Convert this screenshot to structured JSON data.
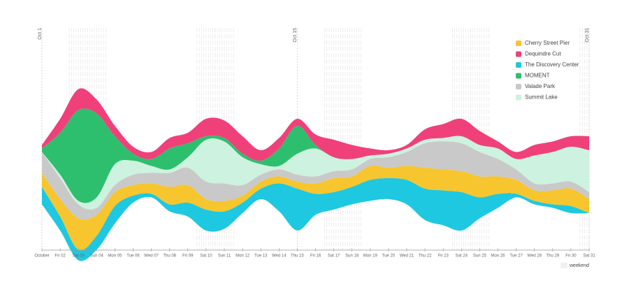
{
  "chart_data": {
    "type": "streamgraph",
    "categories": [
      "October",
      "Fri 02",
      "Sat 03",
      "Sun 04",
      "Mon 05",
      "Tue 06",
      "Wed 07",
      "Thu 08",
      "Fri 09",
      "Sat 10",
      "Sun 11",
      "Mon 12",
      "Tue 13",
      "Wed 14",
      "Thu 15",
      "Fri 16",
      "Sat 17",
      "Sun 18",
      "Mon 19",
      "Tue 20",
      "Wed 21",
      "Thu 22",
      "Fri 23",
      "Sat 24",
      "Sun 25",
      "Mon 26",
      "Tue 27",
      "Wed 28",
      "Thu 29",
      "Fri 30",
      "Sat 31"
    ],
    "series": [
      {
        "name": "Cherry Street Pier",
        "color": "#f7c52d",
        "values": [
          20,
          25,
          45,
          30,
          20,
          15,
          15,
          25,
          25,
          15,
          15,
          10,
          10,
          10,
          10,
          15,
          20,
          15,
          20,
          15,
          20,
          30,
          30,
          30,
          30,
          25,
          20,
          15,
          20,
          25,
          20
        ]
      },
      {
        "name": "Dequindre Cut",
        "color": "#f0407a",
        "values": [
          5,
          20,
          30,
          20,
          15,
          10,
          10,
          15,
          15,
          25,
          25,
          25,
          15,
          15,
          10,
          15,
          25,
          20,
          10,
          5,
          5,
          15,
          20,
          25,
          20,
          10,
          10,
          15,
          15,
          15,
          20
        ]
      },
      {
        "name": "The Discovery Center",
        "color": "#1ec8e0",
        "values": [
          25,
          20,
          15,
          20,
          25,
          10,
          5,
          10,
          20,
          30,
          25,
          15,
          15,
          40,
          60,
          30,
          25,
          25,
          30,
          30,
          35,
          45,
          50,
          55,
          30,
          20,
          5,
          5,
          5,
          10,
          0
        ]
      },
      {
        "name": "MOMENT",
        "color": "#2dbf6e",
        "values": [
          5,
          60,
          130,
          120,
          40,
          10,
          10,
          30,
          20,
          5,
          5,
          5,
          5,
          25,
          40,
          5,
          0,
          0,
          0,
          0,
          0,
          0,
          0,
          0,
          0,
          0,
          0,
          0,
          0,
          0,
          0
        ]
      },
      {
        "name": "Valade Park",
        "color": "#c9c9c9",
        "values": [
          30,
          30,
          20,
          10,
          10,
          15,
          15,
          20,
          25,
          25,
          25,
          15,
          10,
          10,
          10,
          10,
          10,
          10,
          10,
          15,
          20,
          35,
          40,
          40,
          35,
          25,
          15,
          10,
          10,
          10,
          10
        ]
      },
      {
        "name": "Summit Lake",
        "color": "#cdf2df",
        "values": [
          0,
          5,
          5,
          15,
          30,
          20,
          10,
          5,
          15,
          60,
          60,
          40,
          15,
          5,
          30,
          40,
          20,
          15,
          5,
          5,
          5,
          5,
          5,
          10,
          10,
          15,
          15,
          40,
          45,
          50,
          60
        ]
      }
    ],
    "markers": [
      {
        "category": "October",
        "label": "Oct 1"
      },
      {
        "category": "Thu 15",
        "label": "Oct 15"
      },
      {
        "category": "Sat 31",
        "label": "Oct 31"
      }
    ],
    "weekend_label": "weekend",
    "legend": "top-right"
  }
}
